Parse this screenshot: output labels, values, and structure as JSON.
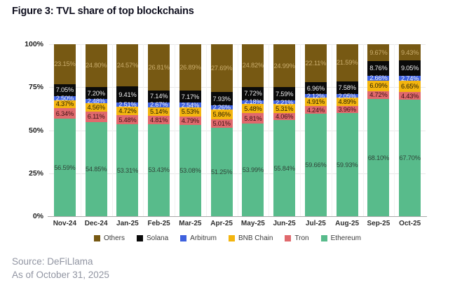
{
  "figure": {
    "title": "Figure 3: TVL share of top blockchains",
    "source_line1": "Source: DeFiLlama",
    "source_line2": "As of October 31, 2025"
  },
  "chart_data": {
    "type": "bar",
    "stacked": true,
    "stack_total": 100,
    "title": "Figure 3: TVL share of top blockchains",
    "xlabel": "",
    "ylabel": "",
    "ylim": [
      0,
      100
    ],
    "grid": true,
    "legend_position": "bottom",
    "y_ticks": [
      "100%",
      "75%",
      "50%",
      "25%",
      "0%"
    ],
    "categories": [
      "Nov-24",
      "Dec-24",
      "Jan-25",
      "Feb-25",
      "Mar-25",
      "Apr-25",
      "May-25",
      "Jun-25",
      "Jul-25",
      "Aug-25",
      "Sep-25",
      "Oct-25"
    ],
    "series_top_to_bottom": [
      {
        "name": "Others",
        "color": "#775913",
        "label_color": "#c9ac6c",
        "values": [
          23.15,
          24.8,
          24.57,
          26.81,
          26.89,
          27.69,
          24.82,
          24.99,
          22.11,
          21.59,
          9.67,
          9.43
        ]
      },
      {
        "name": "Solana",
        "color": "#0a0a0a",
        "label_color": "#ededed",
        "values": [
          7.05,
          7.2,
          9.41,
          7.14,
          7.17,
          7.93,
          7.72,
          7.59,
          6.96,
          7.58,
          8.76,
          9.05
        ]
      },
      {
        "name": "Arbitrum",
        "color": "#3e61de",
        "label_color": "#f4f5fc",
        "values": [
          2.5,
          2.48,
          2.51,
          2.67,
          2.54,
          2.26,
          2.18,
          2.21,
          2.12,
          2.05,
          2.66,
          2.74
        ]
      },
      {
        "name": "BNB Chain",
        "color": "#f3b50f",
        "label_color": "#221a02",
        "values": [
          4.37,
          4.56,
          4.72,
          5.14,
          5.53,
          5.86,
          5.48,
          5.31,
          4.91,
          4.89,
          6.09,
          6.65
        ]
      },
      {
        "name": "Tron",
        "color": "#e0696d",
        "label_color": "#3b1113",
        "values": [
          6.34,
          6.11,
          5.48,
          4.81,
          4.79,
          5.01,
          5.81,
          4.06,
          4.24,
          3.96,
          4.72,
          4.43
        ]
      },
      {
        "name": "Ethereum",
        "color": "#58bb8b",
        "label_color": "#2f4438",
        "values": [
          56.59,
          54.85,
          53.31,
          53.43,
          53.08,
          51.25,
          53.99,
          55.84,
          59.66,
          59.93,
          68.1,
          67.7
        ]
      }
    ]
  }
}
